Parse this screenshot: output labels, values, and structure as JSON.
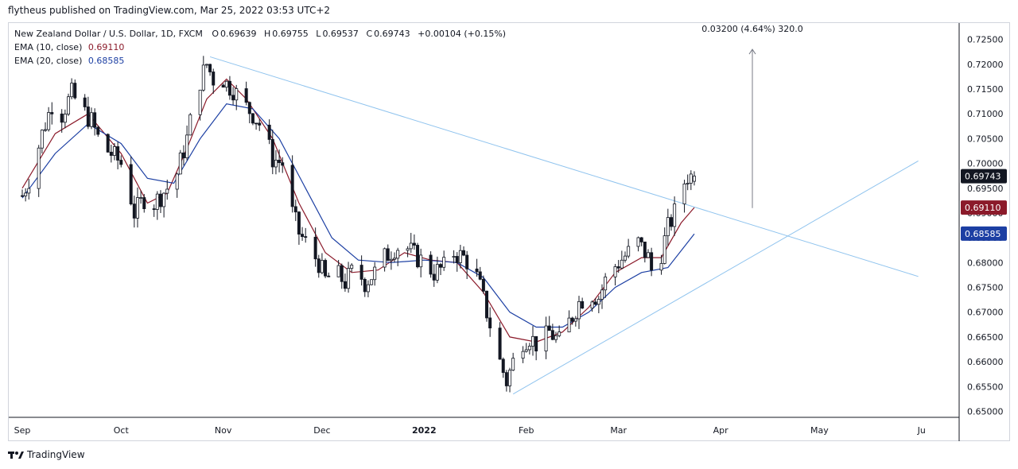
{
  "header": {
    "publish_text": "flytheus published on TradingView.com, Mar 25, 2022 03:53 UTC+2"
  },
  "legend": {
    "symbol": "New Zealand Dollar / U.S. Dollar, 1D, FXCM",
    "o_label": "O",
    "o_value": "0.69639",
    "h_label": "H",
    "h_value": "0.69755",
    "l_label": "L",
    "l_value": "0.69537",
    "c_label": "C",
    "c_value": "0.69743",
    "change": "+0.00104 (+0.15%)",
    "ema10_label": "EMA (10, close)",
    "ema10_value": "0.69110",
    "ema20_label": "EMA (20, close)",
    "ema20_value": "0.68585"
  },
  "colors": {
    "candle": "#131722",
    "ema10": "#8b1a2a",
    "ema20": "#1c3fa3",
    "trendline": "#8fc3ee",
    "badge_price": "#131722",
    "badge_ema10": "#8b1a2a",
    "badge_ema20": "#1c3fa3"
  },
  "measurement": {
    "label": "0.03200 (4.64%) 320.0",
    "from": 0.691,
    "to": 0.723
  },
  "price_badges": [
    {
      "label": "0.69743",
      "value": 0.69743,
      "color_key": "badge_price"
    },
    {
      "label": "0.69110",
      "value": 0.6911,
      "color_key": "badge_ema10"
    },
    {
      "label": "0.68585",
      "value": 0.68585,
      "color_key": "badge_ema20"
    }
  ],
  "footer": {
    "brand": "TradingView",
    "logo_icon": "tradingview-logo-icon"
  },
  "chart_data": {
    "type": "candlestick",
    "title": "New Zealand Dollar / U.S. Dollar, 1D, FXCM",
    "x_start": "2021-09-01",
    "x_ticks": [
      "Sep",
      "Oct",
      "Nov",
      "Dec",
      "2022",
      "Feb",
      "Mar",
      "Apr",
      "May",
      "Ju"
    ],
    "x_tick_dates": [
      "2021-09-01",
      "2021-10-01",
      "2021-11-01",
      "2021-12-01",
      "2022-01-01",
      "2022-02-01",
      "2022-03-01",
      "2022-04-01",
      "2022-05-01",
      "2022-06-01"
    ],
    "y_ticks": [
      "0.72500",
      "0.72000",
      "0.71500",
      "0.71000",
      "0.70500",
      "0.70000",
      "0.69500",
      "0.69000",
      "0.68500",
      "0.68000",
      "0.67500",
      "0.67000",
      "0.66500",
      "0.66000",
      "0.65500",
      "0.65000"
    ],
    "y_tick_values": [
      0.725,
      0.72,
      0.715,
      0.71,
      0.705,
      0.7,
      0.695,
      0.69,
      0.685,
      0.68,
      0.675,
      0.67,
      0.665,
      0.66,
      0.655,
      0.65
    ],
    "ylim": [
      0.6488,
      0.7283
    ],
    "close_path": [
      [
        0,
        0.6935
      ],
      [
        3,
        0.6985
      ],
      [
        6,
        0.706
      ],
      [
        9,
        0.712
      ],
      [
        12,
        0.71
      ],
      [
        15,
        0.714
      ],
      [
        18,
        0.711
      ],
      [
        21,
        0.7085
      ],
      [
        24,
        0.7035
      ],
      [
        27,
        0.702
      ],
      [
        30,
        0.7
      ],
      [
        32,
        0.696
      ],
      [
        34,
        0.69
      ],
      [
        37,
        0.693
      ],
      [
        40,
        0.692
      ],
      [
        44,
        0.695
      ],
      [
        47,
        0.698
      ],
      [
        50,
        0.705
      ],
      [
        53,
        0.715
      ],
      [
        56,
        0.72
      ],
      [
        58,
        0.717
      ],
      [
        60,
        0.718
      ],
      [
        62,
        0.716
      ],
      [
        64,
        0.715
      ],
      [
        67,
        0.712
      ],
      [
        70,
        0.71
      ],
      [
        73,
        0.707
      ],
      [
        76,
        0.701
      ],
      [
        79,
        0.7
      ],
      [
        81,
        0.692
      ],
      [
        84,
        0.686
      ],
      [
        87,
        0.683
      ],
      [
        90,
        0.68
      ],
      [
        92,
        0.6765
      ],
      [
        95,
        0.678
      ],
      [
        98,
        0.676
      ],
      [
        101,
        0.679
      ],
      [
        104,
        0.676
      ],
      [
        107,
        0.678
      ],
      [
        110,
        0.681
      ],
      [
        113,
        0.683
      ],
      [
        116,
        0.6835
      ],
      [
        119,
        0.6815
      ],
      [
        122,
        0.68
      ],
      [
        125,
        0.678
      ],
      [
        128,
        0.679
      ],
      [
        131,
        0.682
      ],
      [
        134,
        0.681
      ],
      [
        137,
        0.679
      ],
      [
        139,
        0.675
      ],
      [
        141,
        0.67
      ],
      [
        143,
        0.665
      ],
      [
        145,
        0.66
      ],
      [
        147,
        0.656
      ],
      [
        149,
        0.66
      ],
      [
        151,
        0.664
      ],
      [
        154,
        0.665
      ],
      [
        157,
        0.663
      ],
      [
        160,
        0.666
      ],
      [
        163,
        0.664
      ],
      [
        166,
        0.668
      ],
      [
        169,
        0.672
      ],
      [
        172,
        0.674
      ],
      [
        175,
        0.673
      ],
      [
        178,
        0.678
      ],
      [
        181,
        0.68
      ],
      [
        184,
        0.682
      ],
      [
        187,
        0.684
      ],
      [
        190,
        0.681
      ],
      [
        192,
        0.676
      ],
      [
        194,
        0.682
      ],
      [
        196,
        0.687
      ],
      [
        198,
        0.69
      ],
      [
        200,
        0.695
      ],
      [
        202,
        0.6975
      ],
      [
        204,
        0.6974
      ]
    ],
    "ema10_path": [
      [
        0,
        0.695
      ],
      [
        10,
        0.706
      ],
      [
        20,
        0.71
      ],
      [
        30,
        0.702
      ],
      [
        38,
        0.692
      ],
      [
        44,
        0.694
      ],
      [
        50,
        0.703
      ],
      [
        56,
        0.713
      ],
      [
        62,
        0.717
      ],
      [
        68,
        0.713
      ],
      [
        76,
        0.705
      ],
      [
        84,
        0.692
      ],
      [
        92,
        0.682
      ],
      [
        100,
        0.678
      ],
      [
        108,
        0.6785
      ],
      [
        116,
        0.682
      ],
      [
        124,
        0.6805
      ],
      [
        132,
        0.68
      ],
      [
        140,
        0.674
      ],
      [
        148,
        0.665
      ],
      [
        156,
        0.664
      ],
      [
        164,
        0.666
      ],
      [
        172,
        0.671
      ],
      [
        180,
        0.678
      ],
      [
        188,
        0.681
      ],
      [
        194,
        0.681
      ],
      [
        200,
        0.688
      ],
      [
        204,
        0.6911
      ]
    ],
    "ema20_path": [
      [
        0,
        0.693
      ],
      [
        10,
        0.702
      ],
      [
        20,
        0.708
      ],
      [
        30,
        0.704
      ],
      [
        38,
        0.697
      ],
      [
        46,
        0.696
      ],
      [
        54,
        0.705
      ],
      [
        62,
        0.712
      ],
      [
        70,
        0.711
      ],
      [
        78,
        0.705
      ],
      [
        86,
        0.695
      ],
      [
        94,
        0.685
      ],
      [
        102,
        0.6805
      ],
      [
        112,
        0.68
      ],
      [
        122,
        0.6805
      ],
      [
        132,
        0.68
      ],
      [
        140,
        0.677
      ],
      [
        148,
        0.67
      ],
      [
        156,
        0.667
      ],
      [
        164,
        0.667
      ],
      [
        172,
        0.67
      ],
      [
        180,
        0.675
      ],
      [
        188,
        0.678
      ],
      [
        196,
        0.679
      ],
      [
        204,
        0.6858
      ]
    ],
    "trendline_down": {
      "from": [
        "2021-10-28",
        0.7215
      ],
      "to": [
        "2022-05-31",
        0.6772
      ]
    },
    "trendline_up": {
      "from": [
        "2022-01-28",
        0.6535
      ],
      "to": [
        "2022-05-31",
        0.7005
      ]
    },
    "y_axis": "right",
    "grid": false
  }
}
